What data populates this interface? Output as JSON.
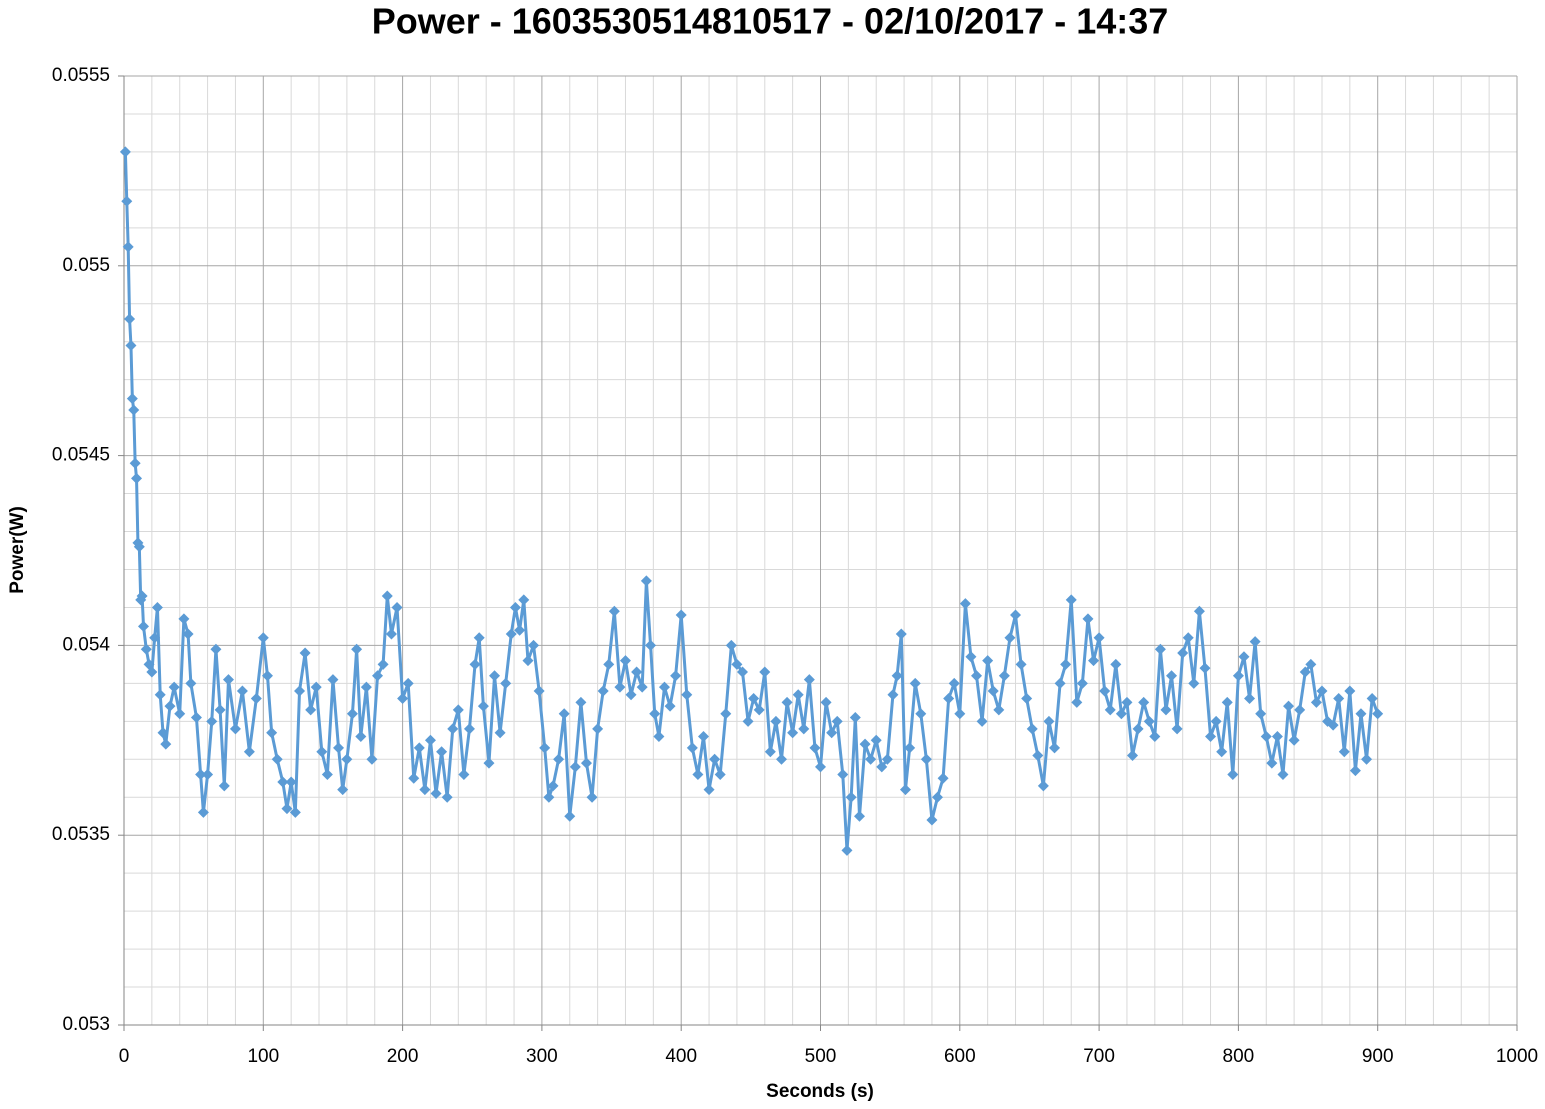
{
  "chart_data": {
    "type": "line",
    "title": "Power - 1603530514810517 - 02/10/2017 - 14:37",
    "x_label": "Seconds (s)",
    "y_label": "Power(W)",
    "xlim": [
      0,
      1000
    ],
    "xticks": [
      0,
      100,
      200,
      300,
      400,
      500,
      600,
      700,
      800,
      900,
      1000
    ],
    "ylim": [
      0.053,
      0.0555
    ],
    "yticks": [
      0.053,
      0.0535,
      0.054,
      0.0545,
      0.055,
      0.0555
    ],
    "grid": true,
    "minor_grid": true,
    "marker": "diamond",
    "series": [
      {
        "color": "#5b9bd5",
        "x": [
          1,
          2,
          3,
          4,
          5,
          6,
          7,
          8,
          9,
          10,
          11,
          12,
          13,
          14,
          16,
          18,
          20,
          22,
          24,
          26,
          28,
          30,
          33,
          36,
          40,
          43,
          46,
          48,
          52,
          55,
          57,
          60,
          63,
          66,
          69,
          72,
          75,
          80,
          85,
          90,
          95,
          100,
          103,
          106,
          110,
          114,
          117,
          120,
          123,
          126,
          130,
          134,
          138,
          142,
          146,
          150,
          154,
          157,
          160,
          164,
          167,
          170,
          174,
          178,
          182,
          186,
          189,
          192,
          196,
          200,
          204,
          208,
          212,
          216,
          220,
          224,
          228,
          232,
          236,
          240,
          244,
          248,
          252,
          255,
          258,
          262,
          266,
          270,
          274,
          278,
          281,
          284,
          287,
          290,
          294,
          298,
          302,
          305,
          308,
          312,
          316,
          320,
          324,
          328,
          332,
          336,
          340,
          344,
          348,
          352,
          356,
          360,
          364,
          368,
          372,
          375,
          378,
          381,
          384,
          388,
          392,
          396,
          400,
          404,
          408,
          412,
          416,
          420,
          424,
          428,
          432,
          436,
          440,
          444,
          448,
          452,
          456,
          460,
          464,
          468,
          472,
          476,
          480,
          484,
          488,
          492,
          496,
          500,
          504,
          508,
          512,
          516,
          519,
          522,
          525,
          528,
          532,
          536,
          540,
          544,
          548,
          552,
          555,
          558,
          561,
          564,
          568,
          572,
          576,
          580,
          584,
          588,
          592,
          596,
          600,
          604,
          608,
          612,
          616,
          620,
          624,
          628,
          632,
          636,
          640,
          644,
          648,
          652,
          656,
          660,
          664,
          668,
          672,
          676,
          680,
          684,
          688,
          692,
          696,
          700,
          704,
          708,
          712,
          716,
          720,
          724,
          728,
          732,
          736,
          740,
          744,
          748,
          752,
          756,
          760,
          764,
          768,
          772,
          776,
          780,
          784,
          788,
          792,
          796,
          800,
          804,
          808,
          812,
          816,
          820,
          824,
          828,
          832,
          836,
          840,
          844,
          848,
          852,
          856,
          860,
          864,
          868,
          872,
          876,
          880,
          884,
          888,
          892,
          896,
          900
        ],
        "values": [
          0.0553,
          0.05517,
          0.05505,
          0.05486,
          0.05479,
          0.05465,
          0.05462,
          0.05448,
          0.05444,
          0.05427,
          0.05426,
          0.05412,
          0.05413,
          0.05405,
          0.05399,
          0.05395,
          0.05393,
          0.05402,
          0.0541,
          0.05387,
          0.05377,
          0.05374,
          0.05384,
          0.05389,
          0.05382,
          0.05407,
          0.05403,
          0.0539,
          0.05381,
          0.05366,
          0.05356,
          0.05366,
          0.0538,
          0.05399,
          0.05383,
          0.05363,
          0.05391,
          0.05378,
          0.05388,
          0.05372,
          0.05386,
          0.05402,
          0.05392,
          0.05377,
          0.0537,
          0.05364,
          0.05357,
          0.05364,
          0.05356,
          0.05388,
          0.05398,
          0.05383,
          0.05389,
          0.05372,
          0.05366,
          0.05391,
          0.05373,
          0.05362,
          0.0537,
          0.05382,
          0.05399,
          0.05376,
          0.05389,
          0.0537,
          0.05392,
          0.05395,
          0.05413,
          0.05403,
          0.0541,
          0.05386,
          0.0539,
          0.05365,
          0.05373,
          0.05362,
          0.05375,
          0.05361,
          0.05372,
          0.0536,
          0.05378,
          0.05383,
          0.05366,
          0.05378,
          0.05395,
          0.05402,
          0.05384,
          0.05369,
          0.05392,
          0.05377,
          0.0539,
          0.05403,
          0.0541,
          0.05404,
          0.05412,
          0.05396,
          0.054,
          0.05388,
          0.05373,
          0.0536,
          0.05363,
          0.0537,
          0.05382,
          0.05355,
          0.05368,
          0.05385,
          0.05369,
          0.0536,
          0.05378,
          0.05388,
          0.05395,
          0.05409,
          0.05389,
          0.05396,
          0.05387,
          0.05393,
          0.05389,
          0.05417,
          0.054,
          0.05382,
          0.05376,
          0.05389,
          0.05384,
          0.05392,
          0.05408,
          0.05387,
          0.05373,
          0.05366,
          0.05376,
          0.05362,
          0.0537,
          0.05366,
          0.05382,
          0.054,
          0.05395,
          0.05393,
          0.0538,
          0.05386,
          0.05383,
          0.05393,
          0.05372,
          0.0538,
          0.0537,
          0.05385,
          0.05377,
          0.05387,
          0.05378,
          0.05391,
          0.05373,
          0.05368,
          0.05385,
          0.05377,
          0.0538,
          0.05366,
          0.05346,
          0.0536,
          0.05381,
          0.05355,
          0.05374,
          0.0537,
          0.05375,
          0.05368,
          0.0537,
          0.05387,
          0.05392,
          0.05403,
          0.05362,
          0.05373,
          0.0539,
          0.05382,
          0.0537,
          0.05354,
          0.0536,
          0.05365,
          0.05386,
          0.0539,
          0.05382,
          0.05411,
          0.05397,
          0.05392,
          0.0538,
          0.05396,
          0.05388,
          0.05383,
          0.05392,
          0.05402,
          0.05408,
          0.05395,
          0.05386,
          0.05378,
          0.05371,
          0.05363,
          0.0538,
          0.05373,
          0.0539,
          0.05395,
          0.05412,
          0.05385,
          0.0539,
          0.05407,
          0.05396,
          0.05402,
          0.05388,
          0.05383,
          0.05395,
          0.05382,
          0.05385,
          0.05371,
          0.05378,
          0.05385,
          0.0538,
          0.05376,
          0.05399,
          0.05383,
          0.05392,
          0.05378,
          0.05398,
          0.05402,
          0.0539,
          0.05409,
          0.05394,
          0.05376,
          0.0538,
          0.05372,
          0.05385,
          0.05366,
          0.05392,
          0.05397,
          0.05386,
          0.05401,
          0.05382,
          0.05376,
          0.05369,
          0.05376,
          0.05366,
          0.05384,
          0.05375,
          0.05383,
          0.05393,
          0.05395,
          0.05385,
          0.05388,
          0.0538,
          0.05379,
          0.05386,
          0.05372,
          0.05388,
          0.05367,
          0.05382,
          0.0537,
          0.05386,
          0.05382
        ]
      }
    ]
  }
}
